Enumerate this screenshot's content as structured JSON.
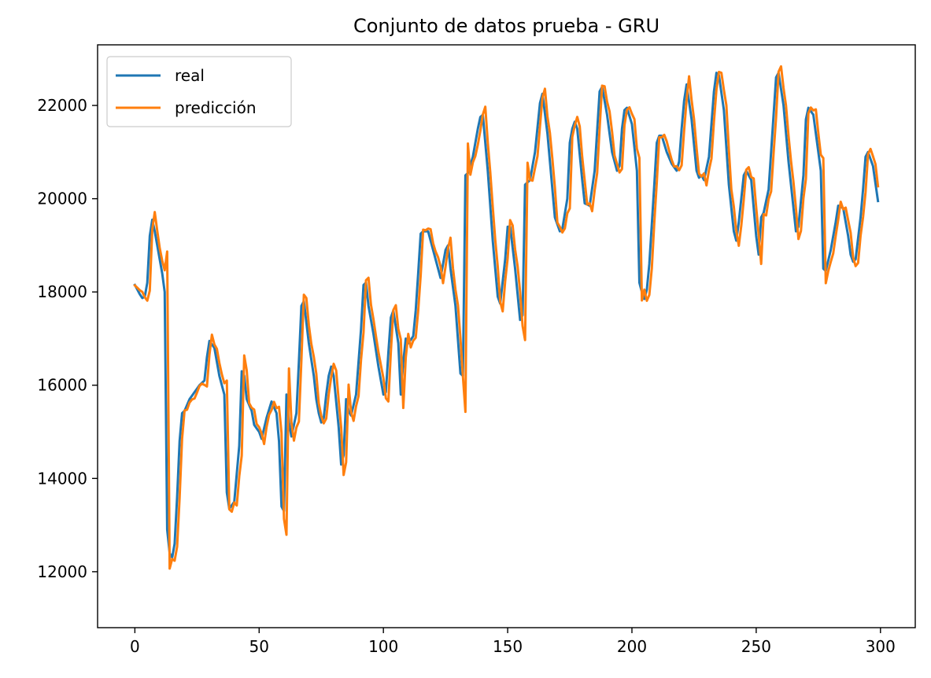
{
  "chart_data": {
    "type": "line",
    "title": "Conjunto de datos prueba - GRU",
    "xlabel": "",
    "ylabel": "",
    "xlim": [
      -15,
      314
    ],
    "ylim": [
      10800,
      23300
    ],
    "xticks": [
      0,
      50,
      100,
      150,
      200,
      250,
      300
    ],
    "yticks": [
      12000,
      14000,
      16000,
      18000,
      20000,
      22000
    ],
    "legend_position": "top-left",
    "grid": false,
    "anchors": [
      [
        0,
        18150
      ],
      [
        2,
        17950
      ],
      [
        3,
        17870
      ],
      [
        4,
        17900
      ],
      [
        5,
        18200
      ],
      [
        6,
        19200
      ],
      [
        7,
        19550
      ],
      [
        8,
        19300
      ],
      [
        9,
        19000
      ],
      [
        10,
        18700
      ],
      [
        11,
        18400
      ],
      [
        12,
        18000
      ],
      [
        13,
        12900
      ],
      [
        14,
        12400
      ],
      [
        15,
        12300
      ],
      [
        16,
        12600
      ],
      [
        17,
        13600
      ],
      [
        18,
        14800
      ],
      [
        19,
        15400
      ],
      [
        20,
        15450
      ],
      [
        22,
        15700
      ],
      [
        24,
        15850
      ],
      [
        26,
        16000
      ],
      [
        28,
        16100
      ],
      [
        29,
        16600
      ],
      [
        30,
        16950
      ],
      [
        32,
        16800
      ],
      [
        34,
        16200
      ],
      [
        36,
        15800
      ],
      [
        37,
        13700
      ],
      [
        38,
        13350
      ],
      [
        40,
        13500
      ],
      [
        42,
        14700
      ],
      [
        43,
        16300
      ],
      [
        44,
        16200
      ],
      [
        45,
        15700
      ],
      [
        47,
        15450
      ],
      [
        48,
        15150
      ],
      [
        50,
        15000
      ],
      [
        51,
        14850
      ],
      [
        53,
        15300
      ],
      [
        55,
        15650
      ],
      [
        57,
        15400
      ],
      [
        58,
        14800
      ],
      [
        59,
        13400
      ],
      [
        60,
        13300
      ],
      [
        61,
        15800
      ],
      [
        62,
        15200
      ],
      [
        63,
        14900
      ],
      [
        65,
        15400
      ],
      [
        66,
        16500
      ],
      [
        67,
        17700
      ],
      [
        68,
        17800
      ],
      [
        70,
        16900
      ],
      [
        72,
        16200
      ],
      [
        73,
        15700
      ],
      [
        74,
        15400
      ],
      [
        75,
        15200
      ],
      [
        76,
        15300
      ],
      [
        77,
        15800
      ],
      [
        78,
        16200
      ],
      [
        79,
        16400
      ],
      [
        80,
        16200
      ],
      [
        82,
        15100
      ],
      [
        83,
        14300
      ],
      [
        84,
        14500
      ],
      [
        85,
        15700
      ],
      [
        86,
        15450
      ],
      [
        87,
        15350
      ],
      [
        89,
        15800
      ],
      [
        91,
        17200
      ],
      [
        92,
        18150
      ],
      [
        93,
        18200
      ],
      [
        94,
        17700
      ],
      [
        96,
        17100
      ],
      [
        98,
        16400
      ],
      [
        100,
        15800
      ],
      [
        101,
        15850
      ],
      [
        102,
        16700
      ],
      [
        103,
        17450
      ],
      [
        104,
        17600
      ],
      [
        106,
        16900
      ],
      [
        107,
        15800
      ],
      [
        108,
        16500
      ],
      [
        109,
        17000
      ],
      [
        110,
        16900
      ],
      [
        112,
        17050
      ],
      [
        113,
        17600
      ],
      [
        114,
        18400
      ],
      [
        115,
        19250
      ],
      [
        116,
        19300
      ],
      [
        118,
        19300
      ],
      [
        119,
        19100
      ],
      [
        121,
        18700
      ],
      [
        123,
        18300
      ],
      [
        124,
        18600
      ],
      [
        125,
        18900
      ],
      [
        126,
        19000
      ],
      [
        127,
        18500
      ],
      [
        129,
        17700
      ],
      [
        131,
        16250
      ],
      [
        132,
        16200
      ],
      [
        133,
        20500
      ],
      [
        134,
        20550
      ],
      [
        136,
        20900
      ],
      [
        138,
        21500
      ],
      [
        139,
        21750
      ],
      [
        140,
        21800
      ],
      [
        142,
        20600
      ],
      [
        144,
        19100
      ],
      [
        146,
        17900
      ],
      [
        147,
        17750
      ],
      [
        149,
        18700
      ],
      [
        150,
        19400
      ],
      [
        151,
        19400
      ],
      [
        153,
        18500
      ],
      [
        155,
        17400
      ],
      [
        156,
        17500
      ],
      [
        157,
        20300
      ],
      [
        158,
        20350
      ],
      [
        159,
        20400
      ],
      [
        161,
        21000
      ],
      [
        163,
        22050
      ],
      [
        164,
        22250
      ],
      [
        166,
        21400
      ],
      [
        168,
        20200
      ],
      [
        169,
        19600
      ],
      [
        171,
        19300
      ],
      [
        172,
        19350
      ],
      [
        174,
        20000
      ],
      [
        175,
        21200
      ],
      [
        176,
        21500
      ],
      [
        177,
        21650
      ],
      [
        178,
        21500
      ],
      [
        180,
        20400
      ],
      [
        181,
        19900
      ],
      [
        183,
        19850
      ],
      [
        185,
        20600
      ],
      [
        187,
        22300
      ],
      [
        188,
        22400
      ],
      [
        190,
        21800
      ],
      [
        192,
        21000
      ],
      [
        194,
        20600
      ],
      [
        195,
        20700
      ],
      [
        196,
        21500
      ],
      [
        197,
        21900
      ],
      [
        198,
        21950
      ],
      [
        200,
        21600
      ],
      [
        202,
        20600
      ],
      [
        203,
        18200
      ],
      [
        204,
        18000
      ],
      [
        205,
        17850
      ],
      [
        206,
        18050
      ],
      [
        207,
        18600
      ],
      [
        209,
        20300
      ],
      [
        210,
        21200
      ],
      [
        211,
        21350
      ],
      [
        212,
        21350
      ],
      [
        214,
        21000
      ],
      [
        216,
        20750
      ],
      [
        218,
        20600
      ],
      [
        219,
        20800
      ],
      [
        220,
        21500
      ],
      [
        221,
        22100
      ],
      [
        222,
        22450
      ],
      [
        224,
        21700
      ],
      [
        226,
        20600
      ],
      [
        227,
        20450
      ],
      [
        228,
        20500
      ],
      [
        229,
        20400
      ],
      [
        231,
        20900
      ],
      [
        232,
        21600
      ],
      [
        233,
        22300
      ],
      [
        234,
        22700
      ],
      [
        235,
        22650
      ],
      [
        237,
        21900
      ],
      [
        239,
        20300
      ],
      [
        241,
        19300
      ],
      [
        242,
        19100
      ],
      [
        243,
        19500
      ],
      [
        245,
        20500
      ],
      [
        246,
        20600
      ],
      [
        248,
        20400
      ],
      [
        250,
        19200
      ],
      [
        251,
        18800
      ],
      [
        252,
        19600
      ],
      [
        253,
        19700
      ],
      [
        255,
        20200
      ],
      [
        257,
        21800
      ],
      [
        258,
        22600
      ],
      [
        259,
        22700
      ],
      [
        261,
        22000
      ],
      [
        263,
        20800
      ],
      [
        265,
        19800
      ],
      [
        266,
        19300
      ],
      [
        267,
        19400
      ],
      [
        269,
        20500
      ],
      [
        270,
        21700
      ],
      [
        271,
        21950
      ],
      [
        273,
        21800
      ],
      [
        275,
        21000
      ],
      [
        276,
        20600
      ],
      [
        277,
        18500
      ],
      [
        278,
        18450
      ],
      [
        280,
        18900
      ],
      [
        282,
        19500
      ],
      [
        283,
        19850
      ],
      [
        285,
        19800
      ],
      [
        287,
        19200
      ],
      [
        288,
        18800
      ],
      [
        289,
        18650
      ],
      [
        290,
        18700
      ],
      [
        292,
        19600
      ],
      [
        293,
        20200
      ],
      [
        294,
        20900
      ],
      [
        295,
        21000
      ],
      [
        297,
        20700
      ],
      [
        299,
        19950
      ]
    ],
    "series": [
      {
        "name": "real",
        "color": "#1f77b4",
        "values_source": "anchors",
        "lag": 0,
        "offset_seed": 0
      },
      {
        "name": "predicción",
        "color": "#ff7f0e",
        "values_source": "anchors",
        "lag": 1,
        "offset_seed": 7
      }
    ]
  }
}
